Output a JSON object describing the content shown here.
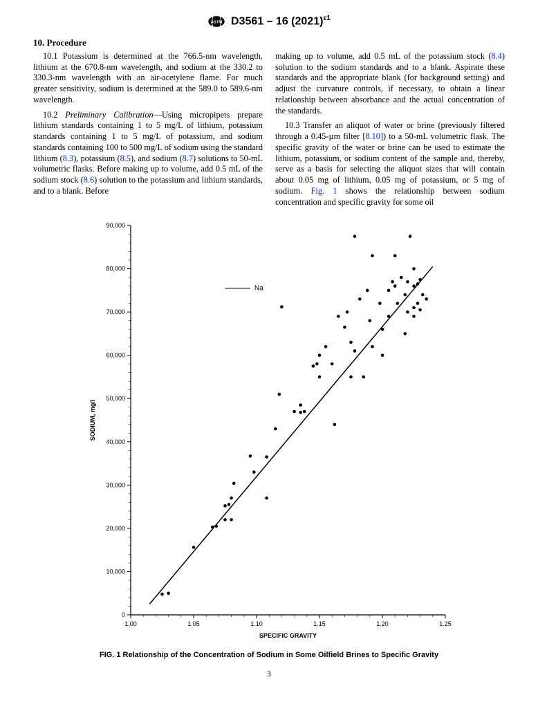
{
  "header": {
    "designation": "D3561 – 16 (2021)",
    "super": "ɛ1"
  },
  "section": {
    "number": "10.",
    "title": "Procedure"
  },
  "paragraphs": {
    "p101_a": "10.1 Potassium is determined at the 766.5-nm wavelength, lithium at the 670.8-nm wavelength, and sodium at the 330.2 to 330.3-nm wavelength with an air-acetylene flame. For much greater sensitivity, sodium is determined at the 589.0 to 589.6-nm wavelength.",
    "p102_lead": "10.2 ",
    "p102_em": "Preliminary Calibration",
    "p102_a": "—Using micropipets prepare lithium standards containing 1 to 5 mg/L of lithium, potassium standards containing 1 to 5 mg/L of potassium, and sodium standards containing 100 to 500 mg/L of sodium using the standard lithium (",
    "r83": "8.3",
    "p102_b": "), potassium (",
    "r85": "8.5",
    "p102_c": "), and sodium (",
    "r87": "8.7",
    "p102_d": ") solutions to 50-mL volumetric flasks. Before making up to volume, add 0.5 mL of the sodium stock (",
    "r86": "8.6",
    "p102_e": ") solution to the potassium and lithium standards, and to a blank. Before",
    "p102_f": "making up to volume, add 0.5 mL of the potassium stock (",
    "r84": "8.4",
    "p102_g": ") solution to the sodium standards and to a blank. Aspirate these standards and the appropriate blank (for background setting) and adjust the curvature controls, if necessary, to obtain a linear relationship between absorbance and the actual concentration of the standards.",
    "p103_a": "10.3 Transfer an aliquot of water or brine (previously filtered through a 0.45-µm filter [",
    "r810": "8.10",
    "p103_b": "]) to a 50-mL volumetric flask. The specific gravity of the water or brine can be used to estimate the lithium, potassium, or sodium content of the sample and, thereby, serve as a basis for selecting the aliquot sizes that will contain about 0.05 mg of lithium, 0.05 mg of potassium, or 5 mg of sodium. ",
    "rfig1": "Fig. 1",
    "p103_c": " shows the relationship between sodium concentration and specific gravity for some oil"
  },
  "figure": {
    "caption": "FIG. 1  Relationship of the Concentration of Sodium in Some Oilfield Brines to Specific Gravity",
    "type": "scatter",
    "xlabel": "SPECIFIC GRAVITY",
    "ylabel": "SODIUM, mg/l",
    "xlim": [
      1.0,
      1.25
    ],
    "ylim": [
      0,
      90000
    ],
    "xticks": [
      1.0,
      1.05,
      1.1,
      1.15,
      1.2,
      1.25
    ],
    "yticks": [
      0,
      10000,
      20000,
      30000,
      40000,
      50000,
      60000,
      70000,
      80000,
      90000
    ],
    "ytick_labels": [
      "0",
      "10,000",
      "20,000",
      "30,000",
      "40,000",
      "50,000",
      "60,000",
      "70,000",
      "80,000",
      "90,000"
    ],
    "marker_color": "#000000",
    "marker_radius": 2.3,
    "line_color": "#000000",
    "line_width": 1.5,
    "background_color": "#ffffff",
    "axis_color": "#000000",
    "tick_fontsize": 9,
    "label_fontsize": 9,
    "legend_label": "Na",
    "legend_line_x": [
      1.075,
      1.095
    ],
    "legend_line_y": 75500,
    "fit_line": {
      "x1": 1.015,
      "y1": 2500,
      "x2": 1.24,
      "y2": 80500
    },
    "points": [
      [
        1.025,
        4800
      ],
      [
        1.03,
        5000
      ],
      [
        1.05,
        15600
      ],
      [
        1.065,
        20300
      ],
      [
        1.068,
        20500
      ],
      [
        1.075,
        25200
      ],
      [
        1.078,
        25500
      ],
      [
        1.075,
        22000
      ],
      [
        1.082,
        30400
      ],
      [
        1.08,
        27000
      ],
      [
        1.08,
        22000
      ],
      [
        1.095,
        36700
      ],
      [
        1.098,
        33000
      ],
      [
        1.108,
        36500
      ],
      [
        1.108,
        27000
      ],
      [
        1.115,
        43000
      ],
      [
        1.118,
        51000
      ],
      [
        1.12,
        71200
      ],
      [
        1.13,
        47000
      ],
      [
        1.135,
        46800
      ],
      [
        1.135,
        48500
      ],
      [
        1.138,
        47000
      ],
      [
        1.145,
        57500
      ],
      [
        1.148,
        58000
      ],
      [
        1.15,
        55000
      ],
      [
        1.15,
        60000
      ],
      [
        1.155,
        62000
      ],
      [
        1.16,
        58000
      ],
      [
        1.162,
        44000
      ],
      [
        1.165,
        69000
      ],
      [
        1.17,
        66500
      ],
      [
        1.172,
        70000
      ],
      [
        1.175,
        55000
      ],
      [
        1.175,
        63000
      ],
      [
        1.178,
        61000
      ],
      [
        1.178,
        87500
      ],
      [
        1.182,
        73000
      ],
      [
        1.185,
        55000
      ],
      [
        1.188,
        75000
      ],
      [
        1.19,
        68000
      ],
      [
        1.192,
        83000
      ],
      [
        1.192,
        62000
      ],
      [
        1.198,
        72000
      ],
      [
        1.2,
        66000
      ],
      [
        1.2,
        60000
      ],
      [
        1.205,
        75000
      ],
      [
        1.205,
        69000
      ],
      [
        1.208,
        77000
      ],
      [
        1.21,
        83000
      ],
      [
        1.21,
        76000
      ],
      [
        1.212,
        72000
      ],
      [
        1.215,
        78000
      ],
      [
        1.218,
        74000
      ],
      [
        1.218,
        65000
      ],
      [
        1.22,
        77000
      ],
      [
        1.22,
        70000
      ],
      [
        1.222,
        87500
      ],
      [
        1.225,
        80000
      ],
      [
        1.225,
        76000
      ],
      [
        1.225,
        71000
      ],
      [
        1.225,
        69000
      ],
      [
        1.228,
        76500
      ],
      [
        1.228,
        72000
      ],
      [
        1.23,
        77500
      ],
      [
        1.23,
        70500
      ],
      [
        1.232,
        74000
      ],
      [
        1.235,
        73000
      ]
    ]
  },
  "pagenum": "3"
}
